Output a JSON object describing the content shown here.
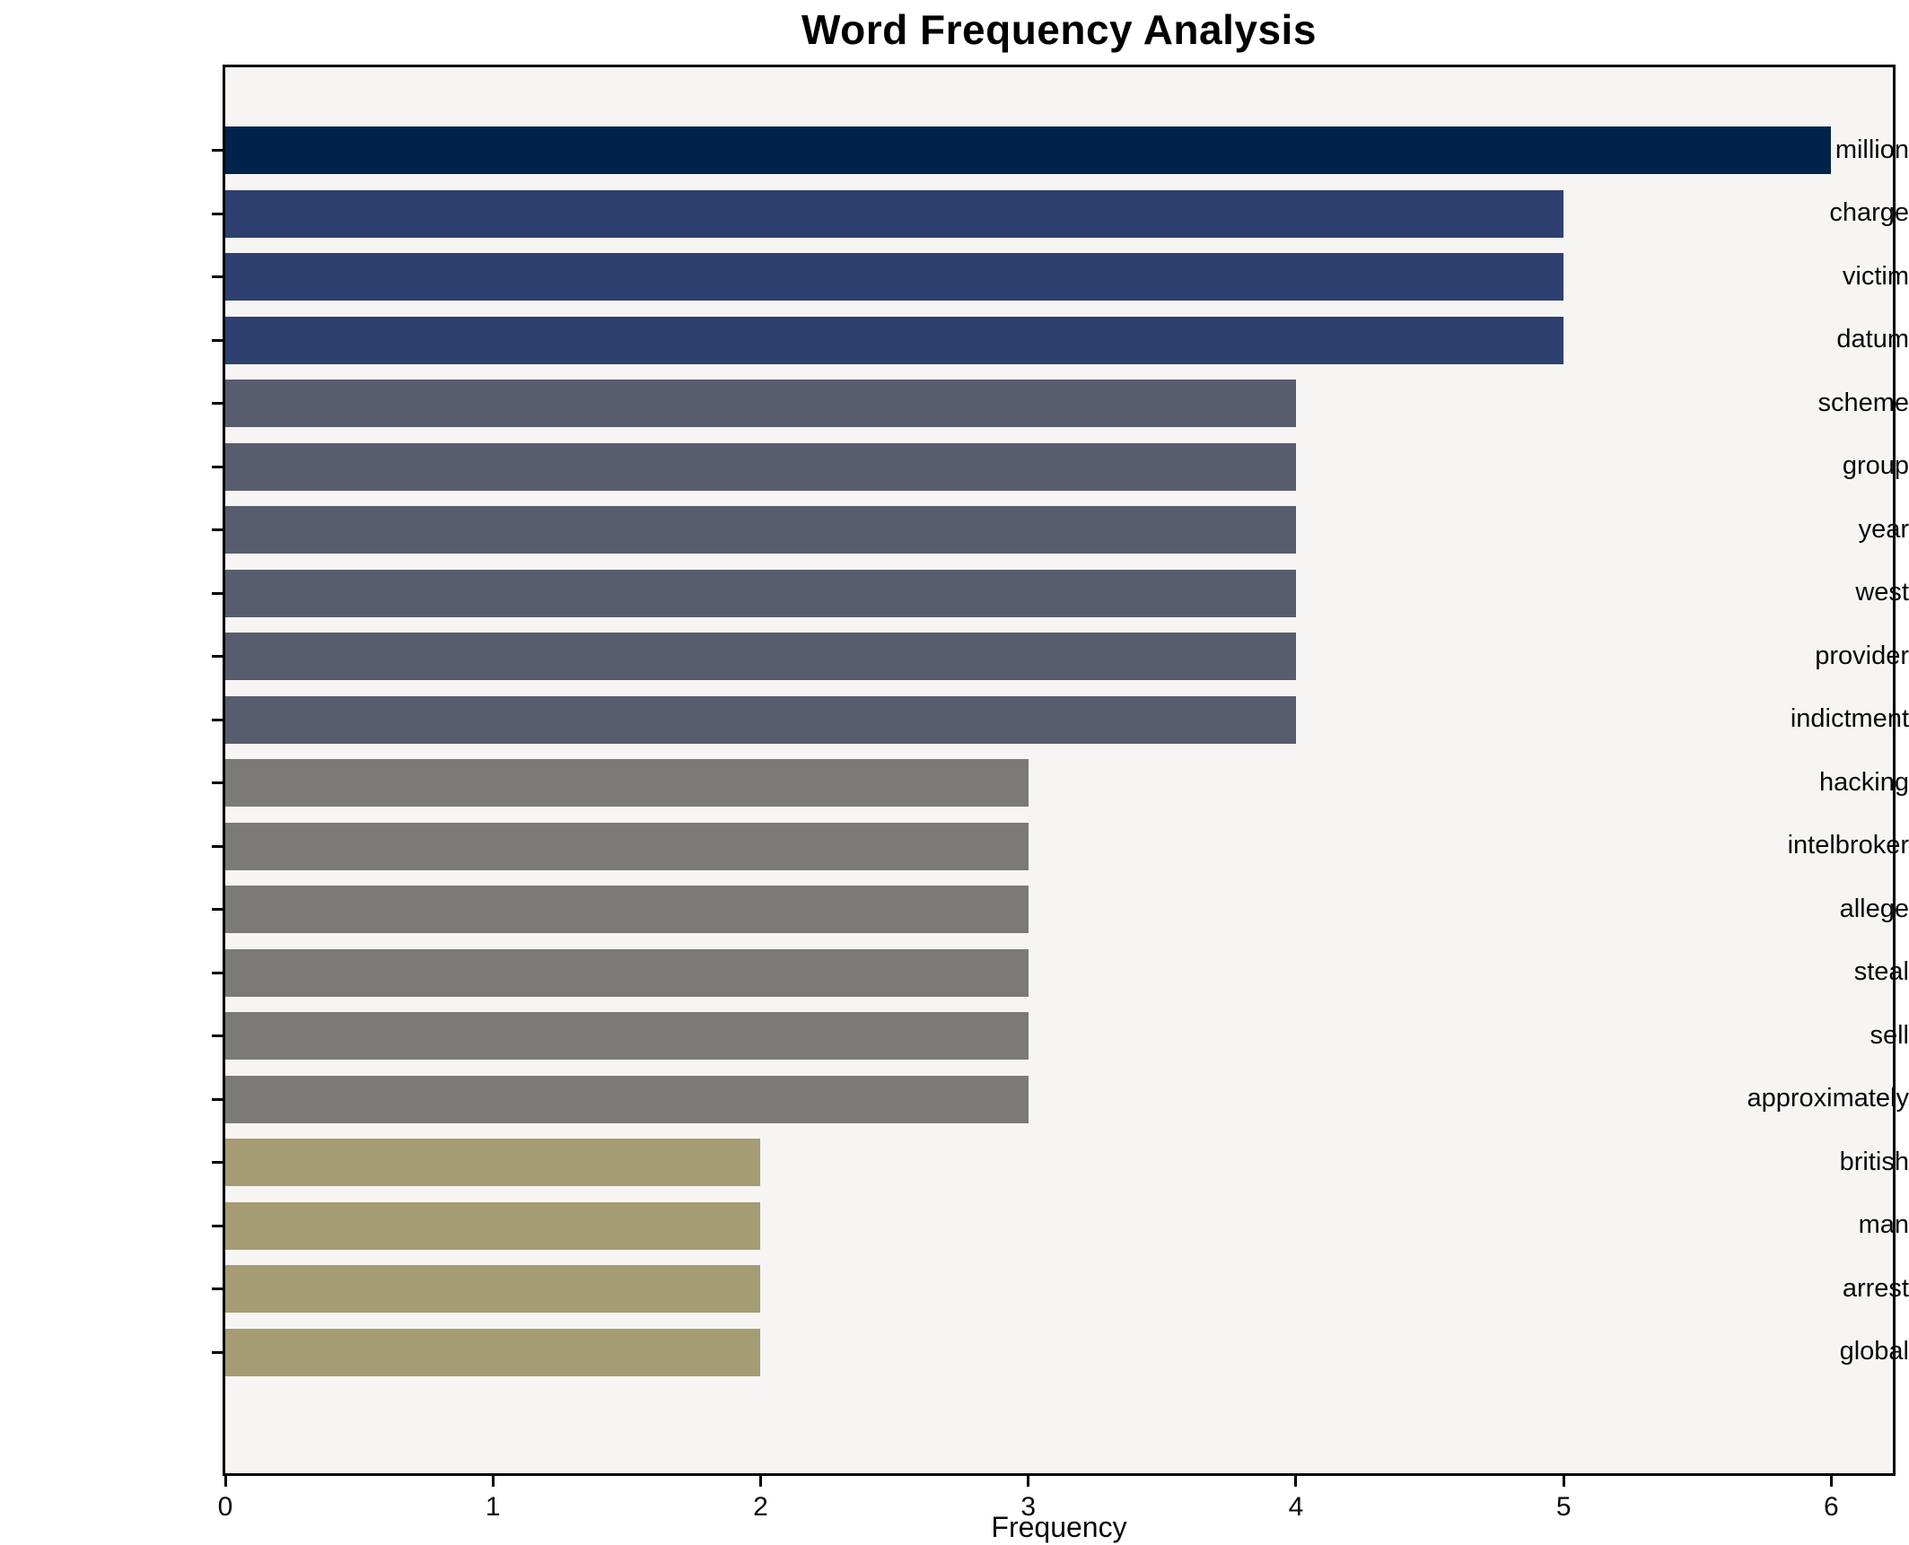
{
  "chart_data": {
    "type": "bar",
    "orientation": "horizontal",
    "title": "Word Frequency Analysis",
    "xlabel": "Frequency",
    "ylabel": "",
    "categories": [
      "million",
      "charge",
      "victim",
      "datum",
      "scheme",
      "group",
      "year",
      "west",
      "provider",
      "indictment",
      "hacking",
      "intelbroker",
      "allege",
      "steal",
      "sell",
      "approximately",
      "british",
      "man",
      "arrest",
      "global"
    ],
    "values": [
      6,
      5,
      5,
      5,
      4,
      4,
      4,
      4,
      4,
      4,
      3,
      3,
      3,
      3,
      3,
      3,
      2,
      2,
      2,
      2
    ],
    "bar_colors": [
      "#00234c",
      "#2e4070",
      "#2e4070",
      "#2e4070",
      "#575d6e",
      "#575d6e",
      "#575d6e",
      "#575d6e",
      "#575d6e",
      "#575d6e",
      "#7b7a77",
      "#7b7a77",
      "#7b7a77",
      "#7b7a77",
      "#7b7a77",
      "#7b7a77",
      "#a59c73",
      "#a59c73",
      "#a59c73",
      "#a59c73"
    ],
    "xlim": [
      0,
      6.23
    ],
    "x_ticks": [
      0,
      1,
      2,
      3,
      4,
      5,
      6
    ],
    "grid": false,
    "legend": null,
    "plot_background": "#f6f5f3",
    "figure_background": "#ffffff",
    "axis_color": "#000000",
    "text_color": "#0a0a0a"
  }
}
